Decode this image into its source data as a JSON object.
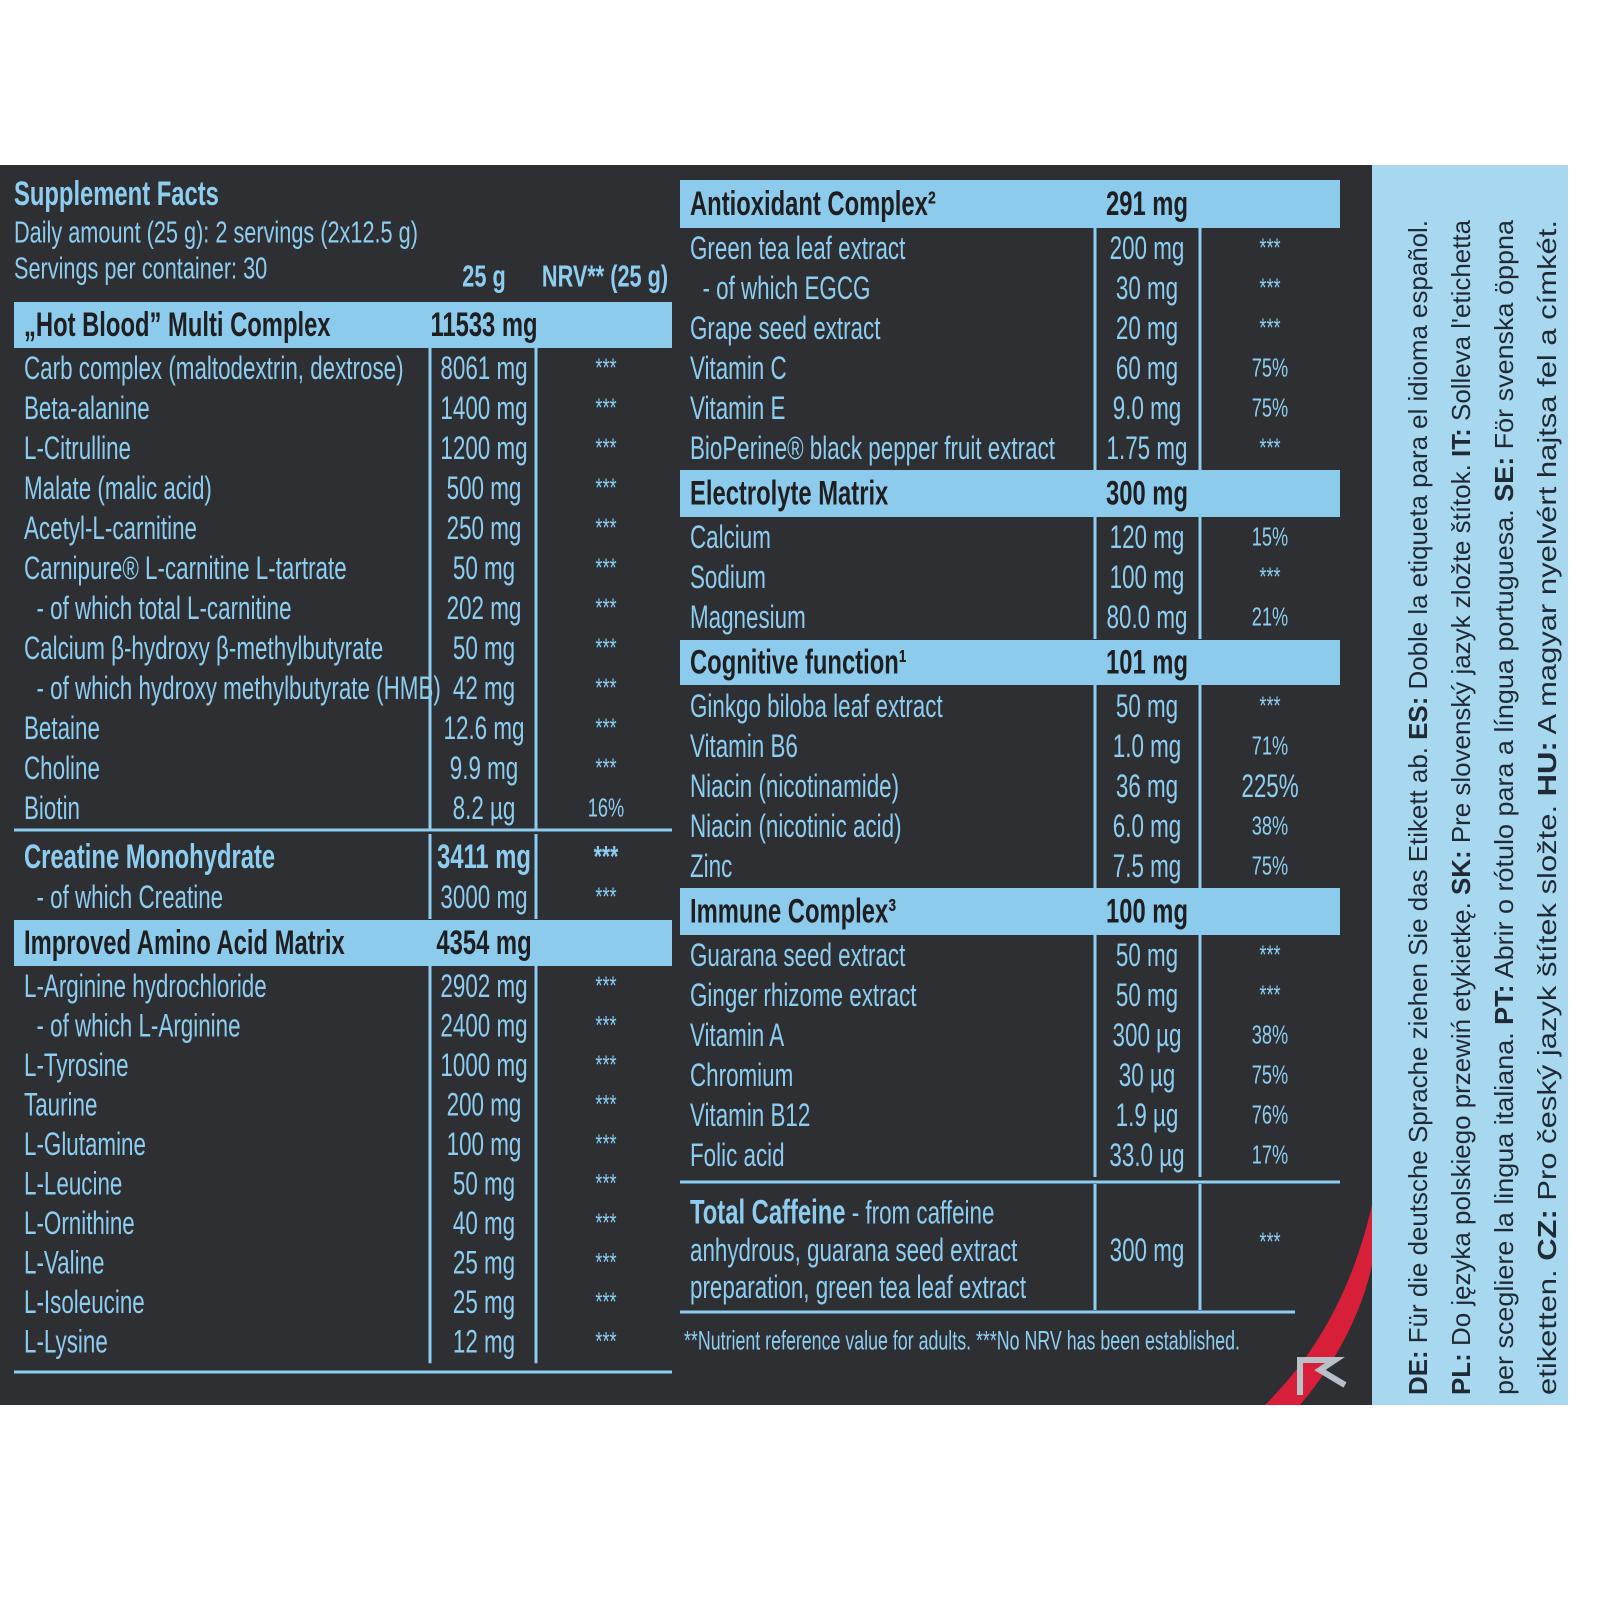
{
  "header": {
    "title": "Supplement Facts",
    "daily_amount": "Daily amount (25 g): 2 servings (2x12.5 g)",
    "servings": "Servings per container: 30",
    "col_amount": "25 g",
    "col_nrv": "NRV** (25 g)"
  },
  "left_sections": [
    {
      "name": "„Hot Blood” Multi Complex",
      "amount": "11533 mg",
      "rows": [
        [
          "Carb complex (maltodextrin, dextrose)",
          "8061 mg",
          "***"
        ],
        [
          "Beta-alanine",
          "1400 mg",
          "***"
        ],
        [
          "L-Citrulline",
          "1200 mg",
          "***"
        ],
        [
          "Malate (malic acid)",
          "500 mg",
          "***"
        ],
        [
          "Acetyl-L-carnitine",
          "250 mg",
          "***"
        ],
        [
          "Carnipure® L-carnitine L-tartrate",
          "50 mg",
          "***"
        ],
        [
          "  - of which total L-carnitine",
          "202 mg",
          "***"
        ],
        [
          "Calcium β-hydroxy β-methylbutyrate",
          "50 mg",
          "***"
        ],
        [
          "  - of which hydroxy methylbutyrate (HMB)",
          "42 mg",
          "***"
        ],
        [
          "Betaine",
          "12.6 mg",
          "***"
        ],
        [
          "Choline",
          "9.9 mg",
          "***"
        ],
        [
          "Biotin",
          "8.2 µg",
          "16%"
        ]
      ]
    },
    {
      "name": "Creatine Monohydrate",
      "amount": "3411 mg",
      "nrv": "***",
      "rows": [
        [
          "  - of which Creatine",
          "3000 mg",
          "***"
        ]
      ]
    },
    {
      "name": "Improved Amino Acid Matrix",
      "amount": "4354 mg",
      "rows": [
        [
          "L-Arginine hydrochloride",
          "2902 mg",
          "***"
        ],
        [
          "  - of which L-Arginine",
          "2400 mg",
          "***"
        ],
        [
          "L-Tyrosine",
          "1000 mg",
          "***"
        ],
        [
          "Taurine",
          "200 mg",
          "***"
        ],
        [
          "L-Glutamine",
          "100 mg",
          "***"
        ],
        [
          "L-Leucine",
          "50 mg",
          "***"
        ],
        [
          "L-Ornithine",
          "40 mg",
          "***"
        ],
        [
          "L-Valine",
          "25 mg",
          "***"
        ],
        [
          "L-Isoleucine",
          "25 mg",
          "***"
        ],
        [
          "L-Lysine",
          "12 mg",
          "***"
        ]
      ]
    }
  ],
  "right_sections": [
    {
      "name": "Antioxidant Complex²",
      "amount": "291 mg",
      "rows": [
        [
          "Green tea leaf extract",
          "200 mg",
          "***"
        ],
        [
          "  - of which EGCG",
          "30 mg",
          "***"
        ],
        [
          "Grape seed extract",
          "20 mg",
          "***"
        ],
        [
          "Vitamin C",
          "60 mg",
          "75%"
        ],
        [
          "Vitamin E",
          "9.0 mg",
          "75%"
        ],
        [
          "BioPerine® black pepper fruit extract",
          "1.75 mg",
          "***"
        ]
      ]
    },
    {
      "name": "Electrolyte Matrix",
      "amount": "300 mg",
      "rows": [
        [
          "Calcium",
          "120 mg",
          "15%"
        ],
        [
          "Sodium",
          "100 mg",
          "***"
        ],
        [
          "Magnesium",
          "80.0 mg",
          "21%"
        ]
      ]
    },
    {
      "name": "Cognitive function¹",
      "amount": "101 mg",
      "rows": [
        [
          "Ginkgo biloba leaf extract",
          "50 mg",
          "***"
        ],
        [
          "Vitamin B6",
          "1.0 mg",
          "71%"
        ],
        [
          "Niacin (nicotinamide)",
          "36 mg",
          "225%"
        ],
        [
          "Niacin (nicotinic acid)",
          "6.0 mg",
          "38%"
        ],
        [
          "Zinc",
          "7.5 mg",
          "75%"
        ]
      ]
    },
    {
      "name": "Immune Complex³",
      "amount": "100 mg",
      "rows": [
        [
          "Guarana seed extract",
          "50 mg",
          "***"
        ],
        [
          "Ginger rhizome extract",
          "50 mg",
          "***"
        ],
        [
          "Vitamin A",
          "300 µg",
          "38%"
        ],
        [
          "Chromium",
          "30 µg",
          "75%"
        ],
        [
          "Vitamin B12",
          "1.9 µg",
          "76%"
        ],
        [
          "Folic acid",
          "33.0 µg",
          "17%"
        ]
      ]
    }
  ],
  "caffeine": {
    "title": "Total Caffeine",
    "lines": [
      " - from caffeine",
      "anhydrous, guarana seed extract",
      "preparation, green tea leaf extract"
    ],
    "amount": "300 mg",
    "nrv": "***"
  },
  "footnote": "**Nutrient reference value for adults. ***No NRV has been established.",
  "side_note": [
    [
      {
        "code": "DE:",
        "text": " Für die deutsche Sprache ziehen Sie das Etikett ab. "
      },
      {
        "code": "ES:",
        "text": " Doble la etiqueta para el idioma español."
      }
    ],
    [
      {
        "code": "PL:",
        "text": " Do języka polskiego przewiń etykietkę. "
      },
      {
        "code": "SK:",
        "text": " Pre slovenský jazyk zložte štítok. "
      },
      {
        "code": "IT:",
        "text": " Solleva l'etichetta"
      }
    ],
    [
      {
        "text": "per scegliere la lingua italiana. "
      },
      {
        "code": "PT:",
        "text": " Abrir o rótulo para a língua portuguesa. "
      },
      {
        "code": "SE:",
        "text": " För svenska öppna"
      }
    ],
    [
      {
        "text": "etiketten. "
      },
      {
        "code": "CZ:",
        "text": " Pro český jazyk štítek složte. "
      },
      {
        "code": "HU:",
        "text": " A magyar nyelvért hajtsa fel a címkét."
      }
    ]
  ]
}
